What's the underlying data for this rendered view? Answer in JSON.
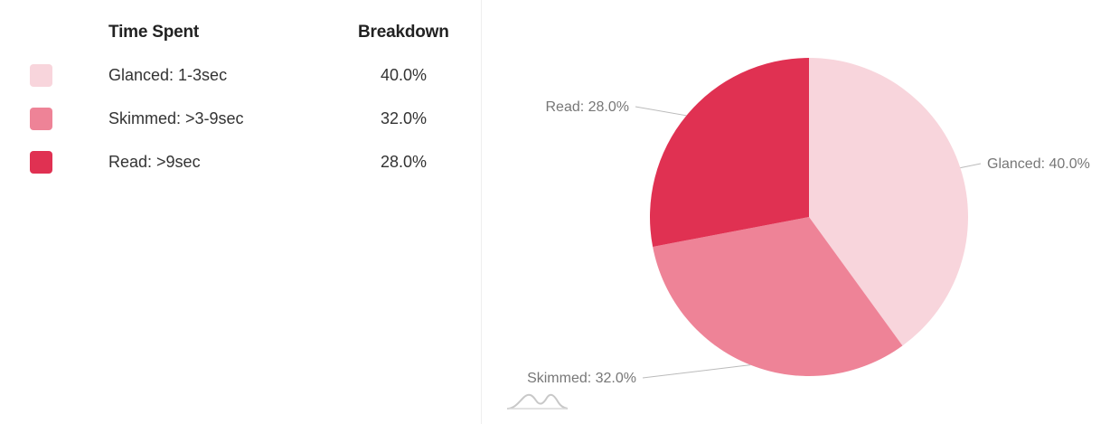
{
  "table": {
    "header_time": "Time Spent",
    "header_breakdown": "Breakdown",
    "rows": [
      {
        "label": "Glanced: 1-3sec",
        "value": "40.0%",
        "color": "#f8d5dc"
      },
      {
        "label": "Skimmed: >3-9sec",
        "value": "32.0%",
        "color": "#ee8397"
      },
      {
        "label": "Read: >9sec",
        "value": "28.0%",
        "color": "#e03152"
      }
    ]
  },
  "chart_data": {
    "type": "pie",
    "title": "",
    "slices": [
      {
        "name": "Glanced",
        "value": 40.0,
        "label": "Glanced: 40.0%",
        "color": "#f8d5dc"
      },
      {
        "name": "Skimmed",
        "value": 32.0,
        "label": "Skimmed: 32.0%",
        "color": "#ee8397"
      },
      {
        "name": "Read",
        "value": 28.0,
        "label": "Read: 28.0%",
        "color": "#e03152"
      }
    ],
    "start_angle": "12 o'clock",
    "direction": "clockwise",
    "labels_outside": true
  },
  "icons": {
    "chart_watermark": "sparkline-logo-icon"
  }
}
